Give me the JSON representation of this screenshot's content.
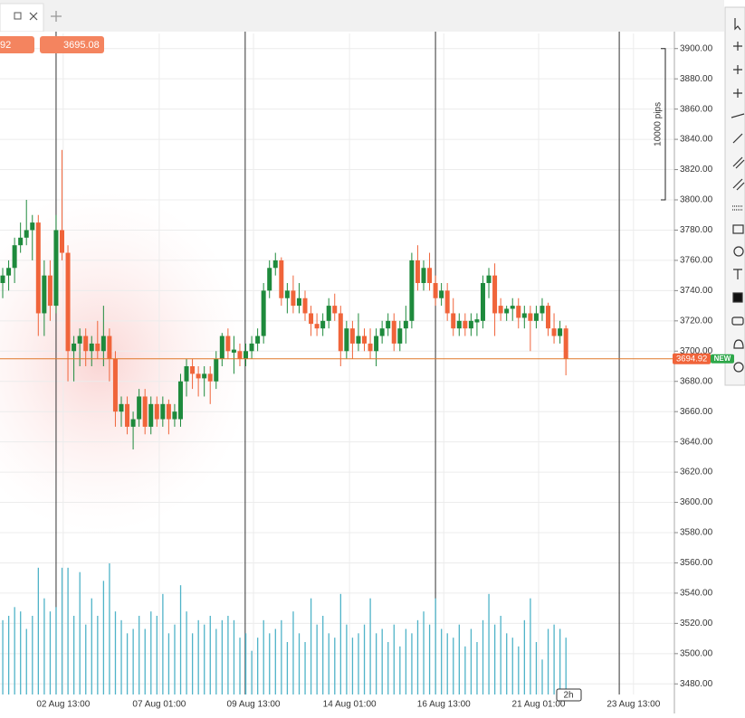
{
  "chart_data": {
    "type": "candlestick",
    "top_tags": [
      "92",
      "3695.08"
    ],
    "ruler_label": "10000 pips",
    "ruler_range": [
      3800,
      3900
    ],
    "last_price": 3694.92,
    "last_price_label": "3694.92",
    "new_badge": "NEW",
    "timeframe": "2h",
    "up_color": "#1e8a3c",
    "down_color": "#f0643a",
    "volume_color": "#4fb3c8",
    "ylim": [
      3473,
      3910
    ],
    "xlim": [
      -0.46,
      113.3
    ],
    "yticks": [
      {
        "value": 3900,
        "label": "3900.00"
      },
      {
        "value": 3880,
        "label": "3880.00"
      },
      {
        "value": 3860,
        "label": "3860.00"
      },
      {
        "value": 3840,
        "label": "3840.00"
      },
      {
        "value": 3820,
        "label": "3820.00"
      },
      {
        "value": 3800,
        "label": "3800.00"
      },
      {
        "value": 3780,
        "label": "3780.00"
      },
      {
        "value": 3760,
        "label": "3760.00"
      },
      {
        "value": 3740,
        "label": "3740.00"
      },
      {
        "value": 3720,
        "label": "3720.00"
      },
      {
        "value": 3700,
        "label": "3700.00"
      },
      {
        "value": 3680,
        "label": "3680.00"
      },
      {
        "value": 3660,
        "label": "3660.00"
      },
      {
        "value": 3640,
        "label": "3640.00"
      },
      {
        "value": 3620,
        "label": "3620.00"
      },
      {
        "value": 3600,
        "label": "3600.00"
      },
      {
        "value": 3580,
        "label": "3580.00"
      },
      {
        "value": 3560,
        "label": "3560.00"
      },
      {
        "value": 3540,
        "label": "3540.00"
      },
      {
        "value": 3520,
        "label": "3520.00"
      },
      {
        "value": 3500,
        "label": "3500.00"
      },
      {
        "value": 3480,
        "label": "3480.00"
      }
    ],
    "xticks": [
      {
        "value": 10.2,
        "label": "02 Aug 13:00"
      },
      {
        "value": 26.4,
        "label": "07 Aug 01:00"
      },
      {
        "value": 42.3,
        "label": "09 Aug 13:00"
      },
      {
        "value": 58.5,
        "label": "14 Aug 01:00"
      },
      {
        "value": 74.4,
        "label": "16 Aug 13:00"
      },
      {
        "value": 90.4,
        "label": "21 Aug 01:00"
      },
      {
        "value": 106.4,
        "label": "23 Aug 13:00"
      }
    ],
    "week_lines": [
      9,
      40.9,
      73,
      104
    ],
    "candles": [
      [
        3745,
        3755,
        3735,
        3750
      ],
      [
        3750,
        3760,
        3740,
        3755
      ],
      [
        3755,
        3775,
        3745,
        3770
      ],
      [
        3770,
        3785,
        3765,
        3775
      ],
      [
        3775,
        3800,
        3770,
        3780
      ],
      [
        3780,
        3790,
        3760,
        3785
      ],
      [
        3785,
        3790,
        3710,
        3725
      ],
      [
        3725,
        3760,
        3710,
        3750
      ],
      [
        3750,
        3760,
        3720,
        3730
      ],
      [
        3730,
        3790,
        3725,
        3780
      ],
      [
        3780,
        3833,
        3760,
        3765
      ],
      [
        3765,
        3770,
        3680,
        3700
      ],
      [
        3700,
        3710,
        3680,
        3705
      ],
      [
        3705,
        3715,
        3690,
        3710
      ],
      [
        3710,
        3715,
        3690,
        3700
      ],
      [
        3700,
        3710,
        3690,
        3705
      ],
      [
        3705,
        3720,
        3695,
        3700
      ],
      [
        3700,
        3730,
        3690,
        3710
      ],
      [
        3710,
        3715,
        3680,
        3695
      ],
      [
        3695,
        3700,
        3650,
        3660
      ],
      [
        3660,
        3670,
        3650,
        3665
      ],
      [
        3665,
        3670,
        3645,
        3650
      ],
      [
        3650,
        3660,
        3635,
        3655
      ],
      [
        3655,
        3675,
        3650,
        3670
      ],
      [
        3670,
        3675,
        3645,
        3650
      ],
      [
        3650,
        3670,
        3645,
        3665
      ],
      [
        3665,
        3670,
        3650,
        3655
      ],
      [
        3655,
        3670,
        3650,
        3665
      ],
      [
        3665,
        3668,
        3645,
        3655
      ],
      [
        3655,
        3665,
        3650,
        3660
      ],
      [
        3655,
        3685,
        3650,
        3680
      ],
      [
        3680,
        3695,
        3670,
        3690
      ],
      [
        3690,
        3695,
        3675,
        3685
      ],
      [
        3685,
        3690,
        3670,
        3682
      ],
      [
        3682,
        3690,
        3670,
        3685
      ],
      [
        3685,
        3690,
        3665,
        3680
      ],
      [
        3680,
        3700,
        3675,
        3695
      ],
      [
        3695,
        3712,
        3690,
        3710
      ],
      [
        3710,
        3715,
        3695,
        3700
      ],
      [
        3699,
        3710,
        3685,
        3701
      ],
      [
        3700,
        3705,
        3690,
        3695
      ],
      [
        3695,
        3705,
        3690,
        3700
      ],
      [
        3700,
        3710,
        3695,
        3705
      ],
      [
        3705,
        3715,
        3700,
        3710
      ],
      [
        3710,
        3745,
        3705,
        3740
      ],
      [
        3740,
        3760,
        3735,
        3755
      ],
      [
        3755,
        3765,
        3750,
        3760
      ],
      [
        3760,
        3762,
        3730,
        3735
      ],
      [
        3735,
        3745,
        3725,
        3740
      ],
      [
        3740,
        3750,
        3725,
        3730
      ],
      [
        3730,
        3745,
        3725,
        3735
      ],
      [
        3735,
        3740,
        3720,
        3725
      ],
      [
        3725,
        3730,
        3710,
        3718
      ],
      [
        3718,
        3725,
        3710,
        3715
      ],
      [
        3715,
        3725,
        3710,
        3720
      ],
      [
        3720,
        3735,
        3715,
        3730
      ],
      [
        3730,
        3738,
        3720,
        3725
      ],
      [
        3725,
        3730,
        3690,
        3700
      ],
      [
        3700,
        3720,
        3695,
        3715
      ],
      [
        3715,
        3720,
        3695,
        3705
      ],
      [
        3705,
        3725,
        3700,
        3710
      ],
      [
        3710,
        3715,
        3700,
        3705
      ],
      [
        3705,
        3715,
        3695,
        3700
      ],
      [
        3700,
        3715,
        3690,
        3710
      ],
      [
        3710,
        3720,
        3705,
        3715
      ],
      [
        3715,
        3725,
        3710,
        3720
      ],
      [
        3720,
        3725,
        3700,
        3705
      ],
      [
        3705,
        3720,
        3700,
        3715
      ],
      [
        3715,
        3730,
        3705,
        3720
      ],
      [
        3720,
        3765,
        3715,
        3760
      ],
      [
        3760,
        3770,
        3740,
        3745
      ],
      [
        3745,
        3760,
        3740,
        3755
      ],
      [
        3755,
        3765,
        3740,
        3745
      ],
      [
        3745,
        3750,
        3730,
        3735
      ],
      [
        3735,
        3745,
        3730,
        3740
      ],
      [
        3740,
        3745,
        3720,
        3725
      ],
      [
        3725,
        3735,
        3710,
        3715
      ],
      [
        3715,
        3725,
        3710,
        3720
      ],
      [
        3720,
        3725,
        3710,
        3715
      ],
      [
        3715,
        3725,
        3710,
        3720
      ],
      [
        3719,
        3725,
        3710,
        3721
      ],
      [
        3720,
        3750,
        3715,
        3745
      ],
      [
        3745,
        3755,
        3735,
        3750
      ],
      [
        3750,
        3758,
        3710,
        3725
      ],
      [
        3730,
        3735,
        3720,
        3725
      ],
      [
        3725,
        3730,
        3720,
        3728
      ],
      [
        3728,
        3735,
        3720,
        3730
      ],
      [
        3730,
        3735,
        3715,
        3722
      ],
      [
        3722,
        3730,
        3715,
        3725
      ],
      [
        3725,
        3730,
        3700,
        3720
      ],
      [
        3720,
        3730,
        3715,
        3725
      ],
      [
        3725,
        3735,
        3720,
        3730
      ],
      [
        3730,
        3732,
        3710,
        3715
      ],
      [
        3715,
        3725,
        3705,
        3710
      ],
      [
        3710,
        3720,
        3705,
        3715
      ],
      [
        3715,
        3717,
        3684,
        3694.92
      ]
    ],
    "volumes": [
      85,
      90,
      100,
      95,
      75,
      90,
      145,
      110,
      95,
      100,
      145,
      145,
      90,
      140,
      80,
      110,
      90,
      130,
      150,
      95,
      85,
      70,
      75,
      90,
      75,
      95,
      90,
      115,
      70,
      80,
      125,
      95,
      70,
      85,
      80,
      90,
      75,
      85,
      90,
      85,
      65,
      70,
      50,
      65,
      85,
      70,
      75,
      85,
      60,
      95,
      70,
      60,
      110,
      80,
      90,
      70,
      65,
      115,
      80,
      65,
      70,
      80,
      110,
      70,
      75,
      60,
      80,
      55,
      75,
      70,
      85,
      95,
      80,
      110,
      75,
      70,
      65,
      80,
      55,
      75,
      60,
      85,
      115,
      80,
      90,
      70,
      65,
      55,
      85,
      110,
      60,
      40,
      75,
      80,
      75,
      65
    ]
  }
}
